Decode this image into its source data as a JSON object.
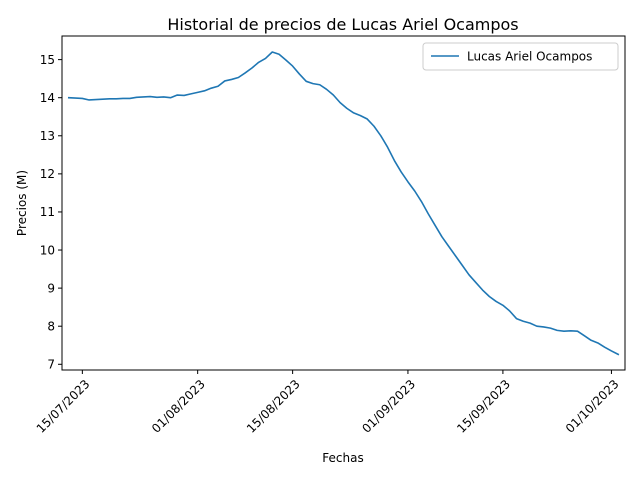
{
  "chart_data": {
    "type": "line",
    "title": "Historial de precios de Lucas Ariel Ocampos",
    "xlabel": "Fechas",
    "ylabel": "Precios (M)",
    "xlim": [
      "2023-07-12",
      "2023-10-03"
    ],
    "ylim": [
      6.85,
      15.62
    ],
    "x_ticks": [
      "2023-07-15",
      "2023-08-01",
      "2023-08-15",
      "2023-09-01",
      "2023-09-15",
      "2023-10-01"
    ],
    "x_tick_labels": [
      "15/07/2023",
      "01/08/2023",
      "15/08/2023",
      "01/09/2023",
      "15/09/2023",
      "01/10/2023"
    ],
    "y_ticks": [
      7,
      8,
      9,
      10,
      11,
      12,
      13,
      14,
      15
    ],
    "y_tick_labels": [
      "7",
      "8",
      "9",
      "10",
      "11",
      "12",
      "13",
      "14",
      "15"
    ],
    "grid": false,
    "legend": {
      "position": "top-right"
    },
    "colors": {
      "series": "#1f77b4",
      "axis": "#000000",
      "legend_border": "#cccccc"
    },
    "series": [
      {
        "name": "Lucas Ariel Ocampos",
        "x": [
          "2023-07-13",
          "2023-07-14",
          "2023-07-15",
          "2023-07-16",
          "2023-07-17",
          "2023-07-18",
          "2023-07-19",
          "2023-07-20",
          "2023-07-21",
          "2023-07-22",
          "2023-07-23",
          "2023-07-24",
          "2023-07-25",
          "2023-07-26",
          "2023-07-27",
          "2023-07-28",
          "2023-07-29",
          "2023-07-30",
          "2023-07-31",
          "2023-08-01",
          "2023-08-02",
          "2023-08-03",
          "2023-08-04",
          "2023-08-05",
          "2023-08-06",
          "2023-08-07",
          "2023-08-08",
          "2023-08-09",
          "2023-08-10",
          "2023-08-11",
          "2023-08-12",
          "2023-08-13",
          "2023-08-14",
          "2023-08-15",
          "2023-08-16",
          "2023-08-17",
          "2023-08-18",
          "2023-08-19",
          "2023-08-20",
          "2023-08-21",
          "2023-08-22",
          "2023-08-23",
          "2023-08-24",
          "2023-08-25",
          "2023-08-26",
          "2023-08-27",
          "2023-08-28",
          "2023-08-29",
          "2023-08-30",
          "2023-08-31",
          "2023-09-01",
          "2023-09-02",
          "2023-09-03",
          "2023-09-04",
          "2023-09-05",
          "2023-09-06",
          "2023-09-07",
          "2023-09-08",
          "2023-09-09",
          "2023-09-10",
          "2023-09-11",
          "2023-09-12",
          "2023-09-13",
          "2023-09-14",
          "2023-09-15",
          "2023-09-16",
          "2023-09-17",
          "2023-09-18",
          "2023-09-19",
          "2023-09-20",
          "2023-09-21",
          "2023-09-22",
          "2023-09-23",
          "2023-09-24",
          "2023-09-25",
          "2023-09-26",
          "2023-09-27",
          "2023-09-28",
          "2023-09-29",
          "2023-09-30",
          "2023-10-01",
          "2023-10-02"
        ],
        "values": [
          14.0,
          13.99,
          13.98,
          13.94,
          13.95,
          13.96,
          13.97,
          13.97,
          13.98,
          13.98,
          14.01,
          14.02,
          14.03,
          14.01,
          14.02,
          14.0,
          14.07,
          14.06,
          14.1,
          14.14,
          14.18,
          14.25,
          14.3,
          14.44,
          14.48,
          14.53,
          14.65,
          14.78,
          14.93,
          15.03,
          15.2,
          15.14,
          14.99,
          14.83,
          14.62,
          14.43,
          14.37,
          14.34,
          14.22,
          14.07,
          13.87,
          13.72,
          13.6,
          13.53,
          13.44,
          13.25,
          13.0,
          12.7,
          12.35,
          12.05,
          11.79,
          11.55,
          11.27,
          10.95,
          10.65,
          10.35,
          10.1,
          9.85,
          9.6,
          9.35,
          9.15,
          8.95,
          8.78,
          8.65,
          8.55,
          8.4,
          8.2,
          8.13,
          8.08,
          8.0,
          7.98,
          7.95,
          7.89,
          7.87,
          7.88,
          7.87,
          7.75,
          7.63,
          7.56,
          7.45,
          7.35,
          7.26
        ]
      }
    ]
  }
}
